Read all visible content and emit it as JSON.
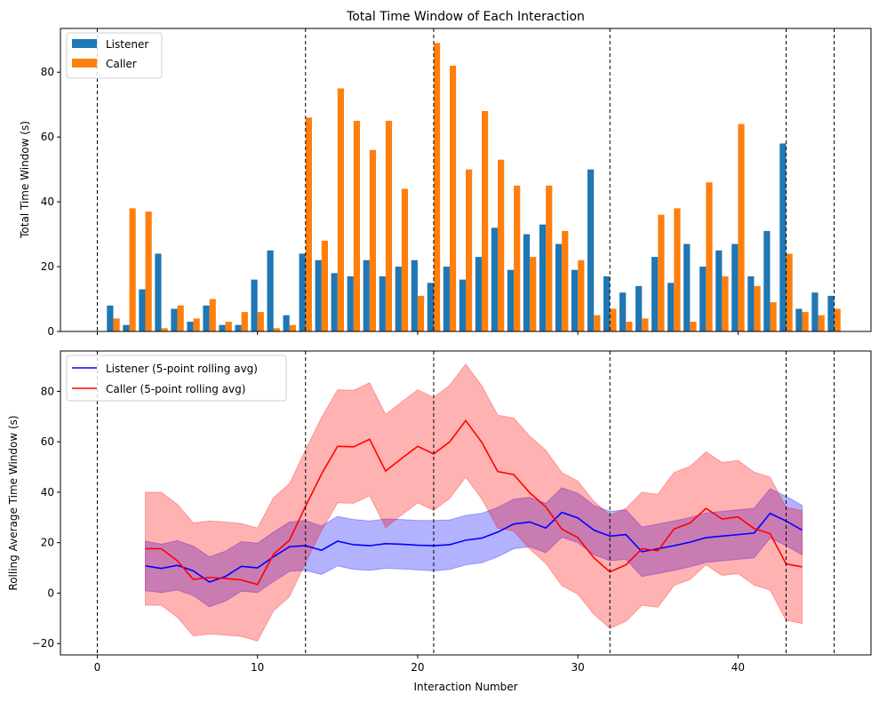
{
  "chart_data": [
    {
      "type": "bar",
      "title": "Total Time Window of Each Interaction",
      "xlabel": "",
      "ylabel": "Total Time Window (s)",
      "xlim": [
        -2.3,
        48.3
      ],
      "ylim": [
        0,
        93.5
      ],
      "yticks": [
        0,
        20,
        40,
        60,
        80
      ],
      "xticks": [
        0,
        10,
        20,
        30,
        40
      ],
      "show_xticklabels": false,
      "legend_loc": "upper left",
      "grid": false,
      "colors": {
        "Listener": "#1f77b4",
        "Caller": "#ff7f0e"
      },
      "x": [
        1,
        2,
        3,
        4,
        5,
        6,
        7,
        8,
        9,
        10,
        11,
        12,
        13,
        14,
        15,
        16,
        17,
        18,
        19,
        20,
        21,
        22,
        23,
        24,
        25,
        26,
        27,
        28,
        29,
        30,
        31,
        32,
        33,
        34,
        35,
        36,
        37,
        38,
        39,
        40,
        41,
        42,
        43,
        44,
        45,
        46
      ],
      "series": [
        {
          "name": "Listener",
          "values": [
            8,
            2,
            13,
            24,
            7,
            3,
            8,
            2,
            2,
            16,
            25,
            5,
            24,
            22,
            18,
            17,
            22,
            17,
            20,
            22,
            15,
            20,
            16,
            23,
            32,
            19,
            30,
            33,
            27,
            19,
            50,
            17,
            12,
            14,
            23,
            15,
            27,
            20,
            25,
            27,
            17,
            31,
            58,
            7,
            12,
            11
          ]
        },
        {
          "name": "Caller",
          "values": [
            4,
            38,
            37,
            1,
            8,
            4,
            10,
            3,
            6,
            6,
            1,
            2,
            66,
            28,
            75,
            65,
            56,
            65,
            44,
            11,
            89,
            82,
            50,
            68,
            53,
            45,
            23,
            45,
            31,
            22,
            5,
            7,
            3,
            4,
            36,
            38,
            3,
            46,
            17,
            64,
            14,
            9,
            24,
            6,
            5,
            7
          ]
        }
      ],
      "vlines": [
        0,
        13,
        21,
        32,
        43,
        46
      ]
    },
    {
      "type": "line",
      "title": "",
      "xlabel": "Interaction Number",
      "ylabel": "Rolling Average Time Window (s)",
      "xlim": [
        -2.3,
        48.3
      ],
      "ylim": [
        -24.5,
        96
      ],
      "yticks": [
        -20,
        0,
        20,
        40,
        60,
        80
      ],
      "xticks": [
        0,
        10,
        20,
        30,
        40
      ],
      "legend_loc": "upper left",
      "grid": false,
      "x": [
        3,
        4,
        5,
        6,
        7,
        8,
        9,
        10,
        11,
        12,
        13,
        14,
        15,
        16,
        17,
        18,
        19,
        20,
        21,
        22,
        23,
        24,
        25,
        26,
        27,
        28,
        29,
        30,
        31,
        32,
        33,
        34,
        35,
        36,
        37,
        38,
        39,
        40,
        41,
        42,
        43,
        44
      ],
      "series": [
        {
          "name": "Listener (5-point rolling avg)",
          "color": "#0000ff",
          "band_color": "#0000ff",
          "values": [
            10.8,
            9.8,
            11.0,
            8.8,
            4.4,
            6.6,
            10.6,
            10.0,
            14.4,
            18.4,
            18.8,
            17.0,
            20.6,
            19.2,
            18.8,
            19.6,
            19.4,
            19.0,
            18.8,
            19.2,
            21.0,
            21.8,
            24.2,
            27.4,
            28.2,
            25.8,
            32.0,
            29.8,
            25.0,
            22.6,
            23.2,
            16.4,
            17.6,
            18.8,
            20.2,
            22.0,
            22.6,
            23.2,
            23.8,
            31.6,
            28.6,
            25.0
          ],
          "upper": [
            20.6,
            19.4,
            20.8,
            18.6,
            14.4,
            16.6,
            20.4,
            19.8,
            24.2,
            28.2,
            28.8,
            26.6,
            30.4,
            29.2,
            28.6,
            29.4,
            29.2,
            28.8,
            28.8,
            29.0,
            30.8,
            31.6,
            34.0,
            37.2,
            38.0,
            35.6,
            41.8,
            39.6,
            34.8,
            32.4,
            33.0,
            26.2,
            27.4,
            28.6,
            30.0,
            31.8,
            32.4,
            33.0,
            33.6,
            41.4,
            38.4,
            34.8
          ],
          "lower": [
            1.0,
            0.2,
            1.2,
            -1.0,
            -5.4,
            -3.2,
            0.8,
            0.2,
            4.6,
            8.6,
            9.0,
            7.4,
            10.8,
            9.4,
            9.0,
            9.8,
            9.6,
            9.2,
            8.8,
            9.4,
            11.2,
            12.0,
            14.4,
            17.6,
            18.4,
            16.0,
            22.2,
            20.0,
            15.2,
            12.8,
            13.4,
            6.6,
            7.8,
            9.0,
            10.4,
            12.2,
            12.8,
            13.4,
            14.0,
            21.8,
            18.8,
            15.2
          ]
        },
        {
          "name": "Caller (5-point rolling avg)",
          "color": "#ff0000",
          "band_color": "#ff0000",
          "values": [
            17.6,
            17.6,
            12.8,
            5.4,
            6.2,
            5.8,
            5.2,
            3.4,
            15.4,
            21.0,
            34.4,
            47.2,
            58.2,
            58.0,
            61.0,
            48.4,
            53.4,
            58.2,
            55.2,
            60.0,
            68.4,
            59.8,
            48.2,
            47.0,
            39.8,
            34.2,
            25.4,
            22.0,
            14.0,
            8.4,
            11.2,
            17.6,
            16.8,
            25.4,
            27.8,
            33.6,
            29.4,
            30.2,
            25.6,
            23.6,
            11.6,
            10.4
          ],
          "upper": [
            40.0,
            40.0,
            35.2,
            27.8,
            28.6,
            28.2,
            27.6,
            25.8,
            37.8,
            43.4,
            56.8,
            69.6,
            80.6,
            80.4,
            83.4,
            70.8,
            75.8,
            80.6,
            77.6,
            82.4,
            90.8,
            82.2,
            70.6,
            69.4,
            62.2,
            56.6,
            47.8,
            44.4,
            36.4,
            30.8,
            33.6,
            40.0,
            39.2,
            47.8,
            50.2,
            56.0,
            51.8,
            52.6,
            48.0,
            46.0,
            34.0,
            32.8
          ],
          "lower": [
            -4.8,
            -4.8,
            -9.6,
            -17.0,
            -16.2,
            -16.6,
            -17.2,
            -19.0,
            -7.0,
            -1.4,
            12.0,
            24.8,
            35.8,
            35.6,
            38.6,
            26.0,
            31.0,
            35.8,
            32.8,
            37.6,
            46.0,
            37.4,
            25.8,
            24.6,
            17.4,
            11.8,
            3.0,
            -0.4,
            -8.4,
            -14.0,
            -11.2,
            -4.8,
            -5.6,
            3.0,
            5.4,
            11.2,
            7.0,
            7.8,
            3.2,
            1.2,
            -10.8,
            -12.0
          ]
        }
      ],
      "vlines": [
        0,
        13,
        21,
        32,
        43,
        46
      ]
    }
  ]
}
